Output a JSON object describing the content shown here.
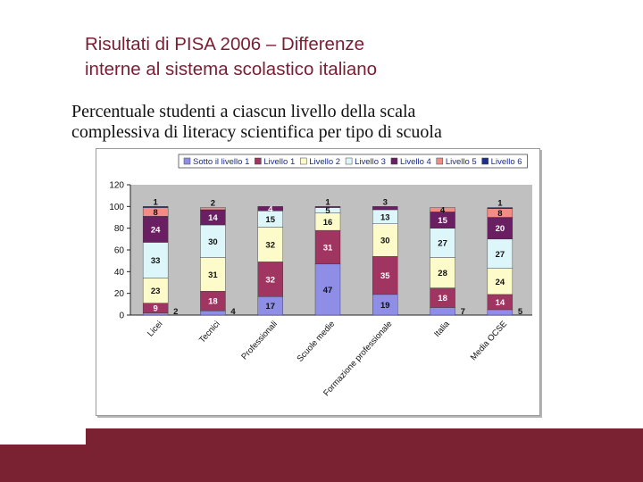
{
  "slide": {
    "title_line1": "Risultati di PISA 2006 – Differenze",
    "title_line2": "interne al sistema scolastico italiano",
    "subtitle_line1": "Percentuale studenti a ciascun livello della scala",
    "subtitle_line2": "complessiva di literacy scientifica per tipo di scuola"
  },
  "colors": {
    "accent": "#7b2232"
  },
  "chart_data": {
    "type": "bar",
    "stacked": true,
    "categories": [
      "Licei",
      "Tecnici",
      "Professionali",
      "Scuole medie",
      "Formazione professionale",
      "Italia",
      "Media OCSE"
    ],
    "series": [
      {
        "name": "Sotto il livello 1",
        "color": "#8e8ee6",
        "values": [
          2,
          4,
          17,
          47,
          19,
          7,
          5
        ]
      },
      {
        "name": "Livello 1",
        "color": "#a03562",
        "values": [
          9,
          18,
          32,
          31,
          35,
          18,
          14
        ]
      },
      {
        "name": "Livello 2",
        "color": "#fcfbc9",
        "values": [
          23,
          31,
          32,
          16,
          30,
          28,
          24
        ]
      },
      {
        "name": "Livello 3",
        "color": "#dcf6fa",
        "values": [
          33,
          30,
          15,
          5,
          13,
          27,
          27
        ]
      },
      {
        "name": "Livello 4",
        "color": "#6a1f63",
        "values": [
          24,
          14,
          4,
          1,
          3,
          15,
          20
        ]
      },
      {
        "name": "Livello 5",
        "color": "#f28c86",
        "values": [
          8,
          2,
          0,
          0,
          0,
          4,
          8
        ]
      },
      {
        "name": "Livello 6",
        "color": "#1d2f8a",
        "values": [
          1,
          0,
          0,
          0,
          0,
          0,
          1
        ]
      }
    ],
    "bar_labels": [
      [
        "2",
        "9",
        "23",
        "33",
        "24",
        "8",
        "1"
      ],
      [
        "4",
        "18",
        "31",
        "30",
        "14",
        "2",
        ""
      ],
      [
        "17",
        "32",
        "32",
        "15",
        "4",
        "",
        ""
      ],
      [
        "47",
        "31",
        "16",
        "5",
        "1",
        "",
        ""
      ],
      [
        "19",
        "35",
        "30",
        "13",
        "3",
        "",
        ""
      ],
      [
        "7",
        "18",
        "28",
        "27",
        "15",
        "4",
        ""
      ],
      [
        "5",
        "14",
        "24",
        "27",
        "20",
        "8",
        "1"
      ]
    ],
    "yticks": [
      0,
      20,
      40,
      60,
      80,
      100,
      120
    ],
    "ylim": [
      0,
      120
    ],
    "legend_position": "top",
    "grid": false
  }
}
